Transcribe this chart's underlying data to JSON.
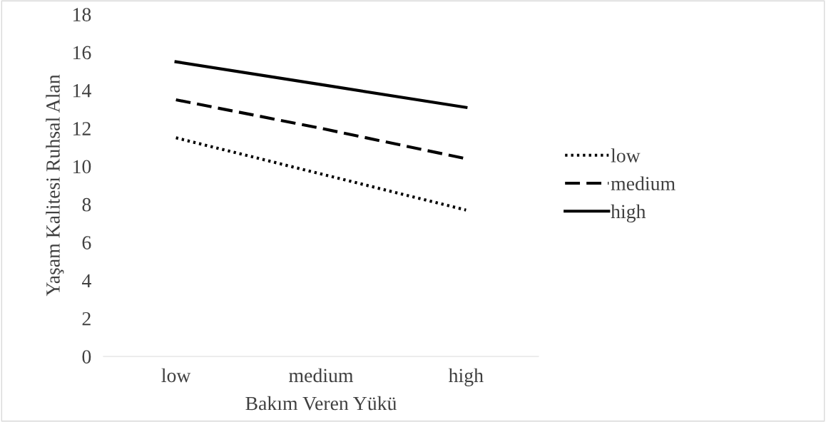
{
  "chart_data": {
    "type": "line",
    "xlabel": "Bakım Veren Yükü",
    "ylabel": "Yaşam Kalitesi Ruhsal Alan",
    "categories": [
      "low",
      "medium",
      "high"
    ],
    "series": [
      {
        "name": "low",
        "color": "#000000",
        "line_style": "dotted",
        "values": [
          11.5,
          9.6,
          7.7
        ]
      },
      {
        "name": "medium",
        "color": "#000000",
        "line_style": "dashed",
        "values": [
          13.5,
          12.0,
          10.4
        ]
      },
      {
        "name": "high",
        "color": "#000000",
        "line_style": "solid",
        "values": [
          15.5,
          14.3,
          13.1
        ]
      }
    ],
    "ylim": [
      0,
      18
    ],
    "yticks": [
      0,
      2,
      4,
      6,
      8,
      10,
      12,
      14,
      16,
      18
    ],
    "grid": false,
    "legend": "right",
    "marker": "none"
  }
}
